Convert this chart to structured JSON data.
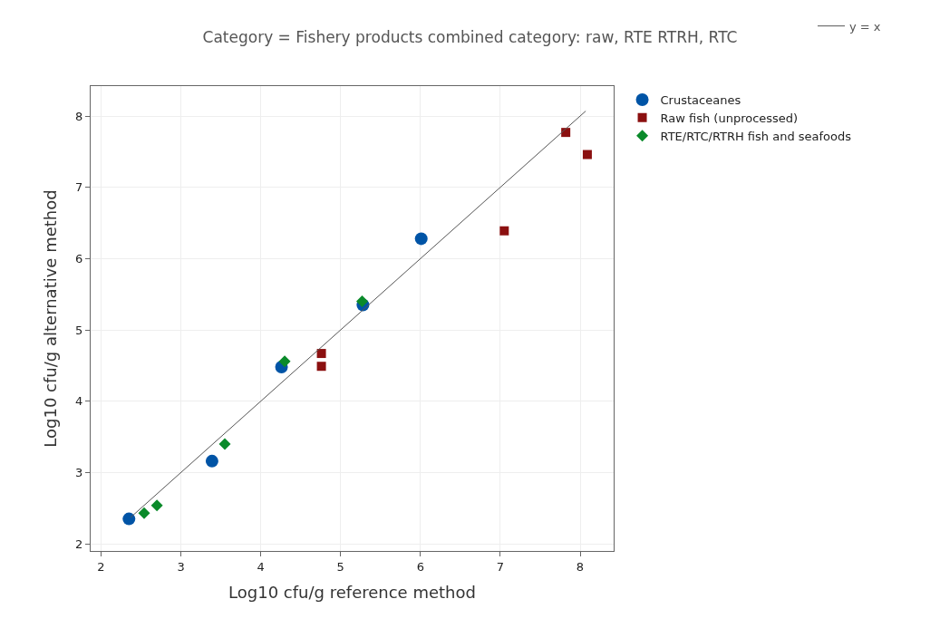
{
  "chart_data": {
    "type": "scatter",
    "title": "Category = Fishery products combined category: raw, RTE RTRH, RTC",
    "xlabel": "Log10 cfu/g reference method",
    "ylabel": "Log10 cfu/g alternative method",
    "xlim": [
      1.87,
      8.42
    ],
    "ylim": [
      1.9,
      8.42
    ],
    "xticks": [
      2,
      3,
      4,
      5,
      6,
      7,
      8
    ],
    "yticks": [
      2,
      3,
      4,
      5,
      6,
      7,
      8
    ],
    "grid": true,
    "legend": "right",
    "series": [
      {
        "name": "Crustaceanes",
        "color": "#0054a6",
        "marker": "circle",
        "x": [
          2.35,
          3.39,
          4.26,
          5.28,
          6.01
        ],
        "values": [
          2.35,
          3.16,
          4.48,
          5.35,
          6.28
        ]
      },
      {
        "name": "Raw fish (unprocessed)",
        "color": "#8b1010",
        "marker": "square",
        "x": [
          4.76,
          4.76,
          7.05,
          7.82,
          8.09
        ],
        "values": [
          4.67,
          4.49,
          6.39,
          7.77,
          7.46
        ]
      },
      {
        "name": "RTE/RTC/RTRH fish and seafoods",
        "color": "#0a8a2a",
        "marker": "diamond",
        "x": [
          2.54,
          2.7,
          3.55,
          4.3,
          5.27
        ],
        "values": [
          2.43,
          2.54,
          3.4,
          4.56,
          5.4
        ]
      },
      {
        "name": "y = x",
        "type": "line",
        "color": "#555555",
        "marker": "none",
        "line_style": "solid",
        "x": [
          2.37,
          8.07
        ],
        "values": [
          2.37,
          8.07
        ]
      }
    ]
  }
}
